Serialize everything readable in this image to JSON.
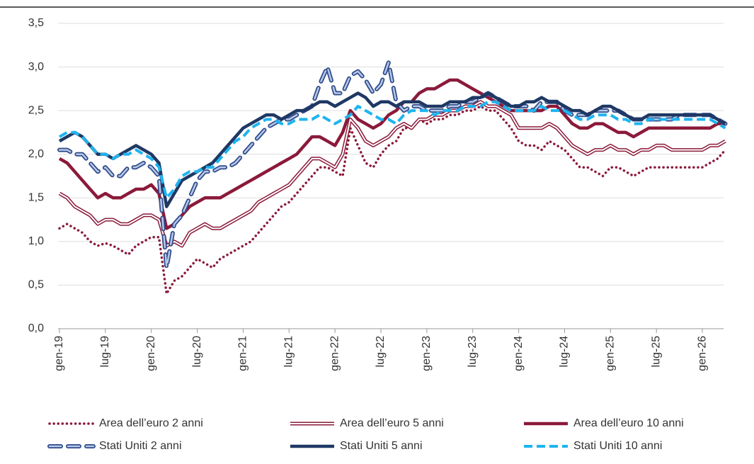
{
  "chart_data": {
    "type": "line",
    "categories": [
      "gen-19",
      null,
      null,
      null,
      null,
      null,
      "lug-19",
      null,
      null,
      null,
      null,
      null,
      "gen-20",
      null,
      null,
      null,
      null,
      null,
      "lug-20",
      null,
      null,
      null,
      null,
      null,
      "gen-21",
      null,
      null,
      null,
      null,
      null,
      "lug-21",
      null,
      null,
      null,
      null,
      null,
      "gen-22",
      null,
      null,
      null,
      null,
      null,
      "lug-22",
      null,
      null,
      null,
      null,
      null,
      "gen-23",
      null,
      null,
      null,
      null,
      null,
      "lug-23",
      null,
      null,
      null,
      null,
      null,
      "gen-24",
      null,
      null,
      null,
      null,
      null,
      "lug-24",
      null,
      null,
      null,
      null,
      null,
      "gen-25",
      null,
      null,
      null,
      null,
      null,
      "lug-25",
      null,
      null,
      null,
      null,
      null,
      "gen-26",
      null,
      null,
      null
    ],
    "ylim": [
      0,
      3.5
    ],
    "yticks": [
      {
        "value": 0,
        "label": "0,0"
      },
      {
        "value": 0.5,
        "label": "0,5"
      },
      {
        "value": 1,
        "label": "1,0"
      },
      {
        "value": 1.5,
        "label": "1,5"
      },
      {
        "value": 2,
        "label": "2,0"
      },
      {
        "value": 2.5,
        "label": "2,5"
      },
      {
        "value": 3,
        "label": "3,0"
      },
      {
        "value": 3.5,
        "label": "3,5"
      }
    ],
    "grid": true,
    "series": [
      {
        "name": "Area dell’euro 2 anni",
        "color": "#8b1a3a",
        "style": "dotted",
        "values": [
          1.15,
          1.2,
          1.15,
          1.1,
          1.0,
          0.95,
          0.98,
          0.95,
          0.9,
          0.85,
          0.95,
          1.0,
          1.05,
          1.05,
          0.4,
          0.55,
          0.6,
          0.7,
          0.8,
          0.75,
          0.7,
          0.8,
          0.85,
          0.9,
          0.95,
          1.0,
          1.1,
          1.2,
          1.3,
          1.4,
          1.45,
          1.55,
          1.65,
          1.75,
          1.85,
          1.85,
          1.8,
          1.75,
          2.3,
          2.1,
          1.9,
          1.85,
          2.0,
          2.1,
          2.15,
          2.3,
          2.3,
          2.4,
          2.35,
          2.4,
          2.4,
          2.45,
          2.45,
          2.5,
          2.5,
          2.55,
          2.5,
          2.5,
          2.4,
          2.3,
          2.15,
          2.1,
          2.1,
          2.05,
          2.15,
          2.1,
          2.05,
          1.95,
          1.85,
          1.85,
          1.8,
          1.75,
          1.85,
          1.85,
          1.8,
          1.75,
          1.8,
          1.85,
          1.85,
          1.85,
          1.85,
          1.85,
          1.85,
          1.85,
          1.85,
          1.9,
          1.95,
          2.05
        ]
      },
      {
        "name": "Area dell’euro 5 anni",
        "color": "#8b1a3a",
        "style": "double",
        "values": [
          1.55,
          1.5,
          1.4,
          1.35,
          1.3,
          1.2,
          1.25,
          1.25,
          1.2,
          1.2,
          1.25,
          1.3,
          1.3,
          1.25,
          0.95,
          1.0,
          0.95,
          1.1,
          1.15,
          1.2,
          1.15,
          1.15,
          1.2,
          1.25,
          1.3,
          1.35,
          1.45,
          1.5,
          1.55,
          1.6,
          1.65,
          1.75,
          1.85,
          1.95,
          1.95,
          1.9,
          1.85,
          2.0,
          2.4,
          2.3,
          2.15,
          2.1,
          2.15,
          2.2,
          2.3,
          2.35,
          2.3,
          2.4,
          2.4,
          2.45,
          2.45,
          2.5,
          2.5,
          2.55,
          2.55,
          2.6,
          2.55,
          2.55,
          2.5,
          2.45,
          2.3,
          2.3,
          2.3,
          2.3,
          2.35,
          2.3,
          2.2,
          2.1,
          2.05,
          2.0,
          2.05,
          2.05,
          2.1,
          2.05,
          2.05,
          2.0,
          2.05,
          2.05,
          2.1,
          2.1,
          2.05,
          2.05,
          2.05,
          2.05,
          2.05,
          2.1,
          2.1,
          2.15
        ]
      },
      {
        "name": "Area dell’euro 10 anni",
        "color": "#8b1a3a",
        "style": "solid",
        "values": [
          1.95,
          1.9,
          1.8,
          1.7,
          1.6,
          1.5,
          1.55,
          1.5,
          1.5,
          1.55,
          1.6,
          1.6,
          1.65,
          1.55,
          1.15,
          1.2,
          1.3,
          1.4,
          1.45,
          1.5,
          1.5,
          1.5,
          1.55,
          1.6,
          1.65,
          1.7,
          1.75,
          1.8,
          1.85,
          1.9,
          1.95,
          2.0,
          2.1,
          2.2,
          2.2,
          2.15,
          2.1,
          2.25,
          2.5,
          2.4,
          2.35,
          2.3,
          2.35,
          2.45,
          2.5,
          2.6,
          2.6,
          2.7,
          2.75,
          2.75,
          2.8,
          2.85,
          2.85,
          2.8,
          2.75,
          2.7,
          2.65,
          2.6,
          2.55,
          2.5,
          2.5,
          2.5,
          2.5,
          2.5,
          2.55,
          2.55,
          2.45,
          2.35,
          2.3,
          2.3,
          2.35,
          2.35,
          2.3,
          2.25,
          2.25,
          2.2,
          2.25,
          2.3,
          2.3,
          2.3,
          2.3,
          2.3,
          2.3,
          2.3,
          2.3,
          2.3,
          2.35,
          2.35
        ]
      },
      {
        "name": "Stati Uniti 2 anni",
        "color": "#2f4b8a",
        "style": "double-dash",
        "values": [
          2.05,
          2.05,
          2.0,
          2.0,
          1.9,
          1.8,
          1.85,
          1.75,
          1.75,
          1.85,
          1.85,
          1.9,
          1.85,
          1.75,
          0.7,
          1.2,
          1.3,
          1.5,
          1.7,
          1.8,
          1.8,
          1.85,
          1.85,
          1.9,
          2.0,
          2.1,
          2.2,
          2.3,
          2.35,
          2.4,
          2.4,
          2.45,
          2.5,
          2.55,
          2.8,
          3.0,
          2.7,
          2.7,
          2.9,
          2.95,
          2.85,
          2.7,
          2.8,
          3.05,
          2.6,
          2.5,
          2.55,
          2.55,
          2.5,
          2.5,
          2.5,
          2.55,
          2.55,
          2.6,
          2.6,
          2.65,
          2.7,
          2.65,
          2.6,
          2.55,
          2.55,
          2.55,
          2.5,
          2.6,
          2.6,
          2.6,
          2.5,
          2.45,
          2.45,
          2.45,
          2.5,
          2.5,
          2.5,
          2.5,
          2.45,
          2.4,
          2.4,
          2.4,
          2.4,
          2.4,
          2.4,
          2.45,
          2.45,
          2.45,
          2.45,
          2.45,
          2.4,
          2.35
        ]
      },
      {
        "name": "Stati Uniti 5 anni",
        "color": "#1f3864",
        "style": "solid",
        "values": [
          2.15,
          2.2,
          2.25,
          2.2,
          2.1,
          2.0,
          2.0,
          1.95,
          2.0,
          2.05,
          2.1,
          2.05,
          2.0,
          1.9,
          1.4,
          1.55,
          1.7,
          1.75,
          1.8,
          1.85,
          1.9,
          2.0,
          2.1,
          2.2,
          2.3,
          2.35,
          2.4,
          2.45,
          2.45,
          2.4,
          2.45,
          2.5,
          2.5,
          2.55,
          2.6,
          2.6,
          2.55,
          2.6,
          2.65,
          2.7,
          2.65,
          2.55,
          2.6,
          2.6,
          2.55,
          2.6,
          2.6,
          2.6,
          2.55,
          2.55,
          2.55,
          2.6,
          2.6,
          2.6,
          2.65,
          2.65,
          2.7,
          2.65,
          2.6,
          2.55,
          2.55,
          2.6,
          2.6,
          2.65,
          2.6,
          2.6,
          2.55,
          2.5,
          2.5,
          2.45,
          2.5,
          2.55,
          2.55,
          2.5,
          2.45,
          2.4,
          2.4,
          2.45,
          2.45,
          2.45,
          2.45,
          2.45,
          2.45,
          2.45,
          2.45,
          2.45,
          2.4,
          2.35
        ]
      },
      {
        "name": "Stati Uniti 10 anni",
        "color": "#1fb4ef",
        "style": "dashed",
        "values": [
          2.2,
          2.25,
          2.25,
          2.2,
          2.1,
          2.0,
          2.0,
          1.95,
          2.0,
          2.0,
          2.05,
          2.0,
          1.95,
          1.85,
          1.5,
          1.6,
          1.75,
          1.8,
          1.8,
          1.85,
          1.85,
          1.95,
          2.05,
          2.15,
          2.2,
          2.3,
          2.35,
          2.4,
          2.4,
          2.35,
          2.35,
          2.4,
          2.4,
          2.4,
          2.45,
          2.4,
          2.35,
          2.4,
          2.45,
          2.55,
          2.5,
          2.45,
          2.4,
          2.4,
          2.35,
          2.45,
          2.5,
          2.5,
          2.5,
          2.45,
          2.5,
          2.5,
          2.5,
          2.55,
          2.55,
          2.55,
          2.6,
          2.6,
          2.55,
          2.5,
          2.5,
          2.5,
          2.5,
          2.55,
          2.5,
          2.5,
          2.5,
          2.45,
          2.4,
          2.4,
          2.45,
          2.45,
          2.45,
          2.4,
          2.4,
          2.35,
          2.35,
          2.4,
          2.4,
          2.4,
          2.4,
          2.4,
          2.4,
          2.4,
          2.4,
          2.4,
          2.35,
          2.3
        ]
      }
    ]
  }
}
